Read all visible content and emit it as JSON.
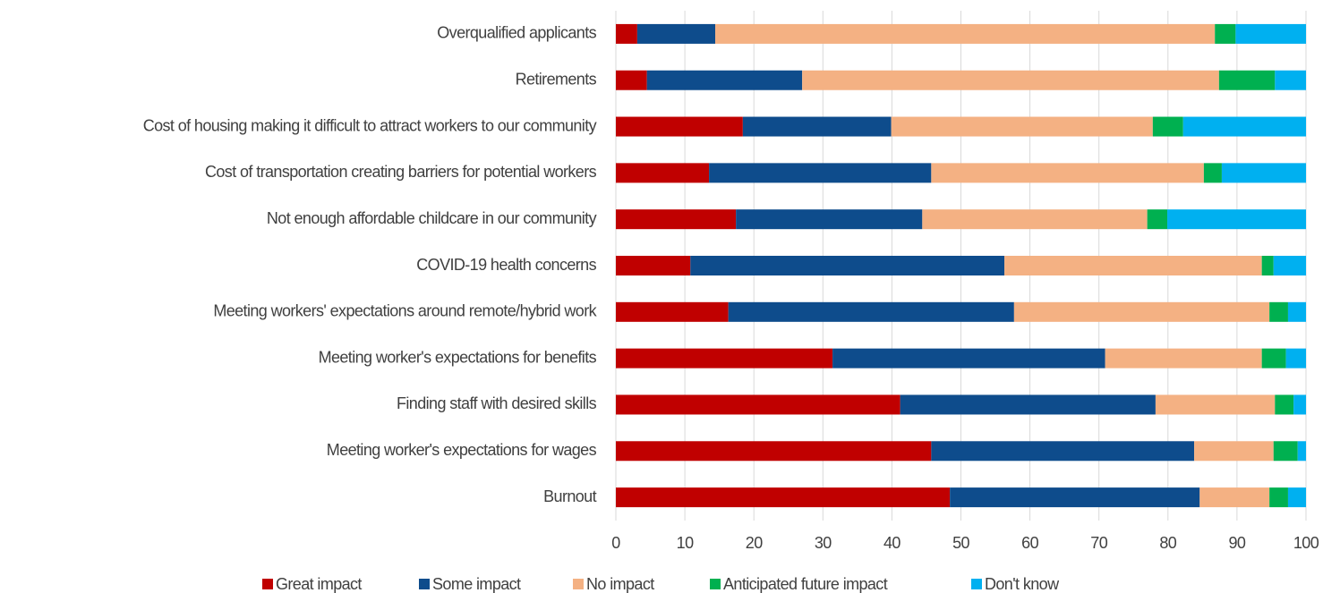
{
  "chart_data": {
    "type": "stacked_bar_horizontal",
    "categories": [
      "Overqualified applicants",
      "Retirements",
      "Cost of housing making it difficult to attract workers to our community",
      "Cost of transportation creating barriers for potential workers",
      "Not enough affordable childcare in our community",
      "COVID-19 health concerns",
      "Meeting workers' expectations around remote/hybrid work",
      "Meeting worker's expectations for benefits",
      "Finding staff with desired skills",
      "Meeting worker's expectations for wages",
      "Burnout"
    ],
    "series": [
      {
        "name": "Great impact",
        "color": "#c00000",
        "values": [
          3.1,
          4.5,
          18.4,
          13.5,
          17.4,
          10.8,
          16.3,
          31.4,
          41.2,
          45.7,
          48.4
        ]
      },
      {
        "name": "Some impact",
        "color": "#0e4c8c",
        "values": [
          11.3,
          22.5,
          21.5,
          32.2,
          27.0,
          45.5,
          41.4,
          39.5,
          37.0,
          38.1,
          36.2
        ]
      },
      {
        "name": "No impact",
        "color": "#f4b183",
        "values": [
          72.4,
          60.4,
          37.9,
          39.5,
          32.6,
          37.3,
          37.0,
          22.7,
          17.3,
          11.5,
          10.1
        ]
      },
      {
        "name": "Anticipated future impact",
        "color": "#00b050",
        "values": [
          3.0,
          8.1,
          4.4,
          2.6,
          2.9,
          1.7,
          2.7,
          3.5,
          2.7,
          3.5,
          2.7
        ]
      },
      {
        "name": "Don't know",
        "color": "#00b0f0",
        "values": [
          10.2,
          4.5,
          17.8,
          12.2,
          20.1,
          4.7,
          2.6,
          2.9,
          1.8,
          1.2,
          2.6
        ]
      }
    ],
    "xlim": [
      0,
      100
    ],
    "xticks": [
      0,
      10,
      20,
      30,
      40,
      50,
      60,
      70,
      80,
      90,
      100
    ],
    "grid": true
  }
}
